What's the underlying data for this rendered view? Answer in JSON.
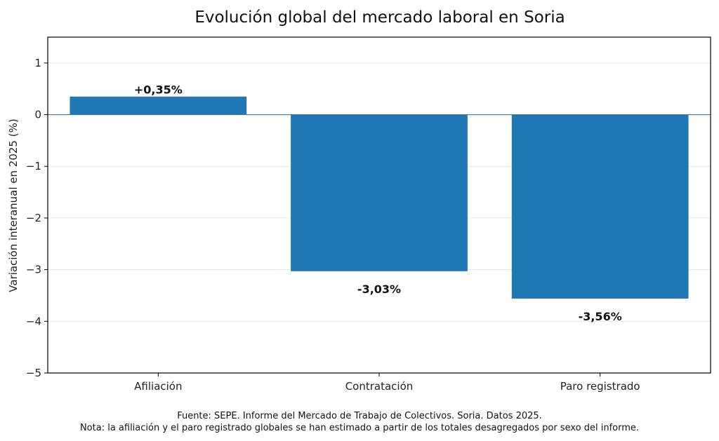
{
  "chart_data": {
    "type": "bar",
    "title": "Evolución global del mercado laboral en Soria",
    "ylabel": "Variación interanual en 2025 (%)",
    "xlabel": "",
    "categories": [
      "Afiliación",
      "Contratación",
      "Paro registrado"
    ],
    "values": [
      0.35,
      -3.03,
      -3.56
    ],
    "value_labels": [
      "+0,35%",
      "-3,03%",
      "-3,56%"
    ],
    "ylim": [
      -5,
      1.5
    ],
    "yticks": [
      1,
      0,
      -1,
      -2,
      -3,
      -4,
      -5
    ],
    "ytick_labels": [
      "1",
      "0",
      "−1",
      "−2",
      "−3",
      "−4",
      "−5"
    ],
    "grid": true,
    "bar_color": "#1f77b4",
    "zero_line_color": "#3a7ca5"
  },
  "footer": {
    "source": "Fuente: SEPE. Informe del Mercado de Trabajo de Colectivos. Soria. Datos 2025.",
    "note": "Nota: la afiliación y el paro registrado globales se han estimado a partir de los totales desagregados por sexo del informe."
  }
}
